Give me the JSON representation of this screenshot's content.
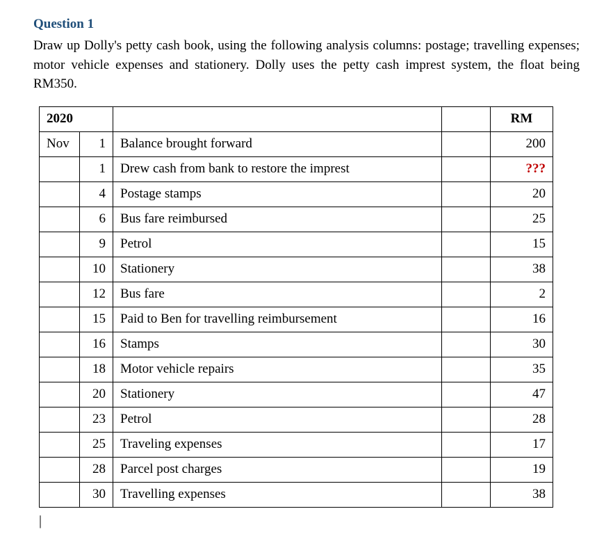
{
  "question": {
    "title": "Question 1",
    "title_color": "#1f4e79",
    "prompt": "Draw up Dolly's petty cash book, using the following analysis columns: postage; travelling expenses; motor vehicle expenses and stationery.  Dolly uses the petty cash imprest system, the float being RM350."
  },
  "table": {
    "header": {
      "year": "2020",
      "amount_label": "RM"
    },
    "rows": [
      {
        "month": "Nov",
        "day": "1",
        "desc": "Balance brought forward",
        "amount": "200",
        "amount_color": "#000000"
      },
      {
        "month": "",
        "day": "1",
        "desc": "Drew cash from bank to restore the imprest",
        "amount": "???",
        "amount_color": "#c00000"
      },
      {
        "month": "",
        "day": "4",
        "desc": "Postage stamps",
        "amount": "20",
        "amount_color": "#000000"
      },
      {
        "month": "",
        "day": "6",
        "desc": "Bus fare reimbursed",
        "amount": "25",
        "amount_color": "#000000"
      },
      {
        "month": "",
        "day": "9",
        "desc": "Petrol",
        "amount": "15",
        "amount_color": "#000000"
      },
      {
        "month": "",
        "day": "10",
        "desc": "Stationery",
        "amount": "38",
        "amount_color": "#000000"
      },
      {
        "month": "",
        "day": "12",
        "desc": "Bus fare",
        "amount": "2",
        "amount_color": "#000000"
      },
      {
        "month": "",
        "day": "15",
        "desc": "Paid to Ben for travelling reimbursement",
        "amount": "16",
        "amount_color": "#000000"
      },
      {
        "month": "",
        "day": "16",
        "desc": "Stamps",
        "amount": "30",
        "amount_color": "#000000"
      },
      {
        "month": "",
        "day": "18",
        "desc": "Motor vehicle repairs",
        "amount": "35",
        "amount_color": "#000000"
      },
      {
        "month": "",
        "day": "20",
        "desc": "Stationery",
        "amount": "47",
        "amount_color": "#000000"
      },
      {
        "month": "",
        "day": "23",
        "desc": "Petrol",
        "amount": "28",
        "amount_color": "#000000"
      },
      {
        "month": "",
        "day": "25",
        "desc": "Traveling expenses",
        "amount": "17",
        "amount_color": "#000000"
      },
      {
        "month": "",
        "day": "28",
        "desc": "Parcel post charges",
        "amount": "19",
        "amount_color": "#000000"
      },
      {
        "month": "",
        "day": "30",
        "desc": "Travelling expenses",
        "amount": "38",
        "amount_color": "#000000"
      }
    ]
  },
  "cursor_glyph": "|"
}
